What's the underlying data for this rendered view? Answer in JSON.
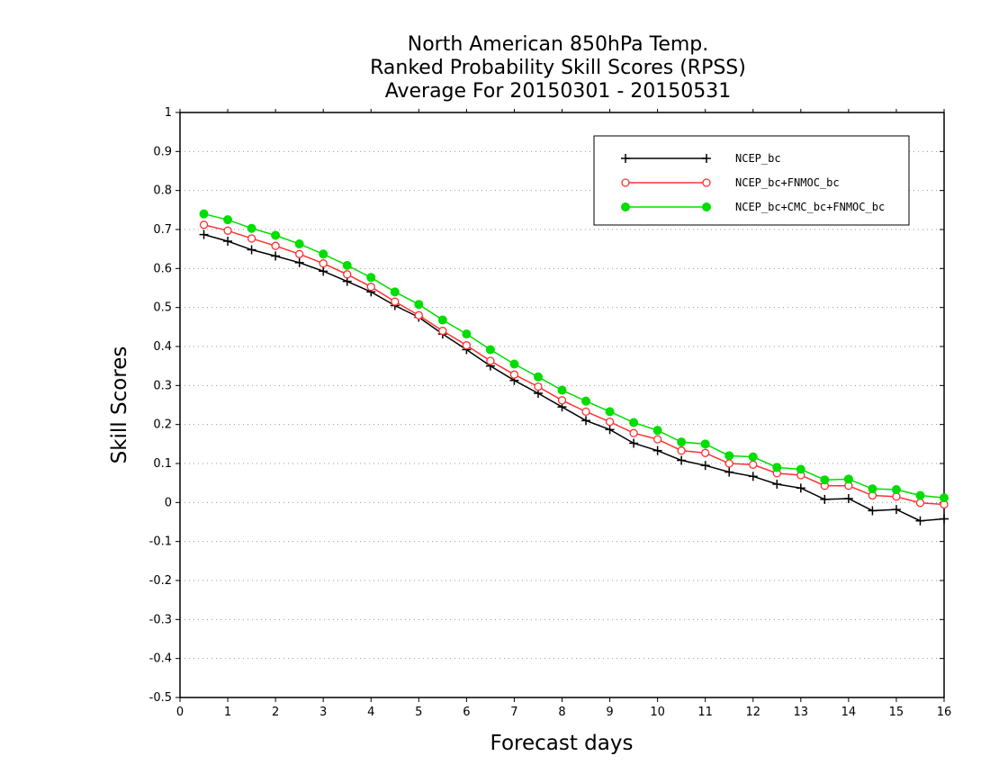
{
  "chart_data": {
    "type": "line",
    "title_lines": [
      "North American 850hPa Temp.",
      "Ranked Probability Skill Scores (RPSS)",
      "Average For 20150301 - 20150531"
    ],
    "xlabel": "Forecast days",
    "ylabel": "Skill Scores",
    "xlim": [
      0,
      16
    ],
    "ylim": [
      -0.5,
      1
    ],
    "x_ticks": [
      0,
      1,
      2,
      3,
      4,
      5,
      6,
      7,
      8,
      9,
      10,
      11,
      12,
      13,
      14,
      15,
      16
    ],
    "x_tick_labels": [
      "0",
      "1",
      "2",
      "3",
      "4",
      "5",
      "6",
      "7",
      "8",
      "9",
      "10",
      "11",
      "12",
      "13",
      "14",
      "15",
      "16"
    ],
    "y_ticks": [
      -0.5,
      -0.4,
      -0.3,
      -0.2,
      -0.1,
      0,
      0.1,
      0.2,
      0.3,
      0.4,
      0.5,
      0.6,
      0.7,
      0.8,
      0.9,
      1
    ],
    "y_tick_labels": [
      "-0.5",
      "-0.4",
      "-0.3",
      "-0.2",
      "-0.1",
      "0",
      "0.1",
      "0.2",
      "0.3",
      "0.4",
      "0.5",
      "0.6",
      "0.7",
      "0.8",
      "0.9",
      "1"
    ],
    "grid": "horizontal dotted",
    "legend_position": "top-right",
    "x": [
      0.5,
      1,
      1.5,
      2,
      2.5,
      3,
      3.5,
      4,
      4.5,
      5,
      5.5,
      6,
      6.5,
      7,
      7.5,
      8,
      8.5,
      9,
      9.5,
      10,
      10.5,
      11,
      11.5,
      12,
      12.5,
      13,
      13.5,
      14,
      14.5,
      15,
      15.5,
      16
    ],
    "series": [
      {
        "name": "NCEP_bc",
        "color": "#000000",
        "marker": "plus",
        "values": [
          0.687,
          0.67,
          0.648,
          0.632,
          0.615,
          0.593,
          0.567,
          0.54,
          0.505,
          0.475,
          0.432,
          0.392,
          0.35,
          0.313,
          0.28,
          0.245,
          0.21,
          0.187,
          0.152,
          0.133,
          0.108,
          0.095,
          0.078,
          0.067,
          0.047,
          0.037,
          0.008,
          0.01,
          -0.021,
          -0.018,
          -0.047,
          -0.042
        ]
      },
      {
        "name": "NCEP_bc+FNMOC_bc",
        "color": "#ff3030",
        "marker": "open-circle",
        "values": [
          0.712,
          0.697,
          0.677,
          0.658,
          0.637,
          0.613,
          0.585,
          0.553,
          0.515,
          0.48,
          0.44,
          0.403,
          0.363,
          0.328,
          0.297,
          0.262,
          0.233,
          0.207,
          0.178,
          0.162,
          0.133,
          0.127,
          0.1,
          0.097,
          0.075,
          0.07,
          0.043,
          0.043,
          0.018,
          0.015,
          -0.001,
          -0.005
        ]
      },
      {
        "name": "NCEP_bc+CMC_bc+FNMOC_bc",
        "color": "#00dd00",
        "marker": "filled-circle",
        "values": [
          0.74,
          0.725,
          0.703,
          0.685,
          0.663,
          0.637,
          0.608,
          0.577,
          0.54,
          0.508,
          0.468,
          0.432,
          0.392,
          0.355,
          0.322,
          0.288,
          0.26,
          0.233,
          0.205,
          0.185,
          0.155,
          0.15,
          0.12,
          0.117,
          0.09,
          0.085,
          0.058,
          0.06,
          0.035,
          0.033,
          0.018,
          0.012
        ]
      }
    ]
  }
}
